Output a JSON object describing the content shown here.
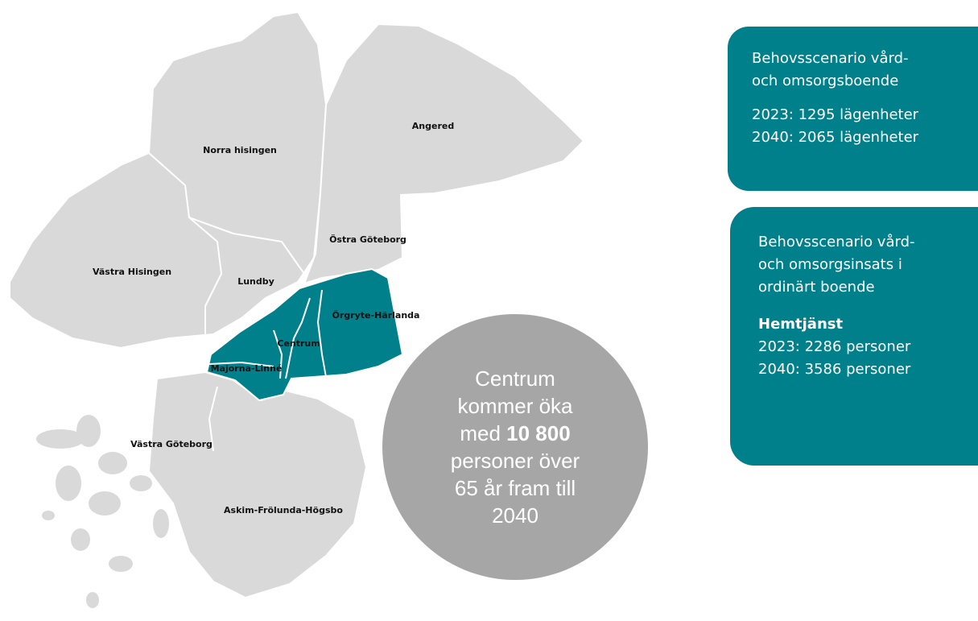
{
  "map": {
    "regions": [
      "Norra hisingen",
      "Angered",
      "Östra Göteborg",
      "Västra Hisingen",
      "Lundby",
      "Örgryte-Härlanda",
      "Centrum",
      "Majorna-Linné",
      "Västra Göteborg",
      "Askim-Frölunda-Högsbo"
    ]
  },
  "circle": {
    "lines_before": [
      "Centrum",
      "kommer öka"
    ],
    "emphasis_prefix": "med",
    "emphasis": "10 800",
    "lines_after": [
      "personer över",
      "65 år fram till",
      "2040"
    ]
  },
  "box_housing": {
    "title_lines": [
      "Behovsscenario vård-",
      "och omsorgsboende"
    ],
    "stats": [
      "2023: 1295 lägenheter",
      "2040: 2065 lägenheter"
    ]
  },
  "box_home_care": {
    "title_lines": [
      "Behovsscenario vård-",
      "och omsorgsinsats i",
      "ordinärt boende"
    ],
    "subtitle": "Hemtjänst",
    "stats": [
      "2023: 2286 personer",
      "2040: 3586 personer"
    ]
  }
}
